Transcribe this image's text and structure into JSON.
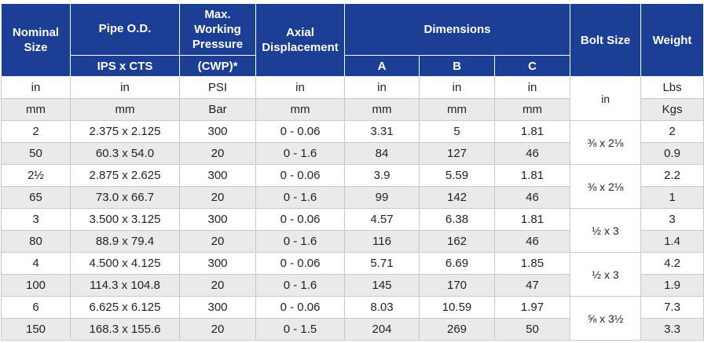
{
  "header": {
    "nominal_size": "Nominal Size",
    "pipe_od": "Pipe O.D.",
    "pipe_od_sub": "IPS x CTS",
    "max_pressure": "Max. Working Pressure",
    "max_pressure_sub": "(CWP)*",
    "axial": "Axial Displacement",
    "dimensions": "Dimensions",
    "dim_a": "A",
    "dim_b": "B",
    "dim_c": "C",
    "bolt_size": "Bolt Size",
    "weight": "Weight"
  },
  "units": {
    "imperial": [
      "in",
      "in",
      "PSI",
      "in",
      "in",
      "in",
      "in",
      "in",
      "Lbs"
    ],
    "metric": [
      "mm",
      "mm",
      "Bar",
      "mm",
      "mm",
      "mm",
      "mm",
      "Kgs"
    ]
  },
  "rows": [
    {
      "size": "2",
      "od": "2.375 x 2.125",
      "pressure": "300",
      "axial": "0 - 0.06",
      "a": "3.31",
      "b": "5",
      "c": "1.81",
      "weight": "2"
    },
    {
      "size": "50",
      "od": "60.3 x 54.0",
      "pressure": "20",
      "axial": "0 - 1.6",
      "a": "84",
      "b": "127",
      "c": "46",
      "weight": "0.9"
    },
    {
      "size": "2½",
      "od": "2.875 x 2.625",
      "pressure": "300",
      "axial": "0 - 0.06",
      "a": "3.9",
      "b": "5.59",
      "c": "1.81",
      "weight": "2.2"
    },
    {
      "size": "65",
      "od": "73.0 x 66.7",
      "pressure": "20",
      "axial": "0 - 1.6",
      "a": "99",
      "b": "142",
      "c": "46",
      "weight": "1"
    },
    {
      "size": "3",
      "od": "3.500 x 3.125",
      "pressure": "300",
      "axial": "0 - 0.06",
      "a": "4.57",
      "b": "6.38",
      "c": "1.81",
      "weight": "3"
    },
    {
      "size": "80",
      "od": "88.9 x 79.4",
      "pressure": "20",
      "axial": "0 - 1.6",
      "a": "116",
      "b": "162",
      "c": "46",
      "weight": "1.4"
    },
    {
      "size": "4",
      "od": "4.500 x 4.125",
      "pressure": "300",
      "axial": "0 - 0.06",
      "a": "5.71",
      "b": "6.69",
      "c": "1.85",
      "weight": "4.2"
    },
    {
      "size": "100",
      "od": "114.3 x 104.8",
      "pressure": "20",
      "axial": "0 - 1.6",
      "a": "145",
      "b": "170",
      "c": "47",
      "weight": "1.9"
    },
    {
      "size": "6",
      "od": "6.625 x 6.125",
      "pressure": "300",
      "axial": "0 - 0.06",
      "a": "8.03",
      "b": "10.59",
      "c": "1.97",
      "weight": "7.3"
    },
    {
      "size": "150",
      "od": "168.3 x 155.6",
      "pressure": "20",
      "axial": "0 - 1.5",
      "a": "204",
      "b": "269",
      "c": "50",
      "weight": "3.3"
    }
  ],
  "bolts": [
    "⅜ x 2⅛",
    "⅜ x 2⅛",
    "½ x 3",
    "½ x 3",
    "⅝ x 3½"
  ],
  "colors": {
    "header_bg": "#1c3e94",
    "header_text": "#ffffff",
    "alt_row": "#eaeaea"
  }
}
